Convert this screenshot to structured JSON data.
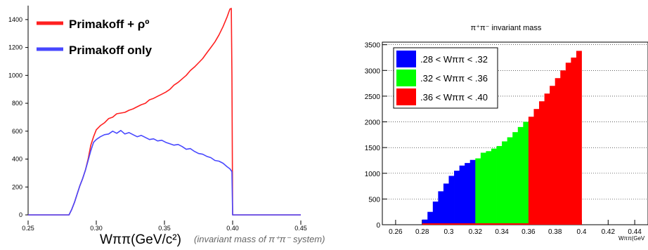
{
  "chart_data": [
    {
      "type": "line",
      "title": "",
      "xlabel": "Wππ(GeV/c²)",
      "xlabel_note": "(invariant mass of π⁺π⁻ system)",
      "ylabel": "",
      "xlim": [
        0.25,
        0.45
      ],
      "ylim": [
        0,
        1500
      ],
      "x_ticks": [
        "0.25",
        "0.30",
        "0.35",
        "0.40",
        "0.45"
      ],
      "y_ticks": [
        "0",
        "200",
        "400",
        "600",
        "800",
        "1000",
        "1200",
        "1400"
      ],
      "legend_position": "top-left",
      "series": [
        {
          "name": "Primakoff + ρº",
          "color": "#ff2020",
          "x": [
            0.25,
            0.28,
            0.282,
            0.284,
            0.286,
            0.288,
            0.29,
            0.292,
            0.294,
            0.296,
            0.298,
            0.3,
            0.303,
            0.306,
            0.309,
            0.312,
            0.315,
            0.318,
            0.321,
            0.324,
            0.327,
            0.33,
            0.333,
            0.336,
            0.339,
            0.342,
            0.345,
            0.348,
            0.351,
            0.354,
            0.357,
            0.36,
            0.363,
            0.366,
            0.369,
            0.372,
            0.375,
            0.378,
            0.381,
            0.384,
            0.387,
            0.39,
            0.393,
            0.396,
            0.398,
            0.399,
            0.3995,
            0.4,
            0.45
          ],
          "values": [
            0,
            0,
            40,
            90,
            150,
            210,
            260,
            320,
            400,
            500,
            560,
            610,
            640,
            660,
            690,
            700,
            725,
            730,
            735,
            750,
            760,
            775,
            790,
            800,
            825,
            835,
            850,
            865,
            880,
            900,
            930,
            950,
            975,
            1000,
            1035,
            1060,
            1090,
            1120,
            1160,
            1200,
            1240,
            1290,
            1350,
            1420,
            1475,
            1480,
            1000,
            0,
            0
          ]
        },
        {
          "name": "Primakoff only",
          "color": "#4848ff",
          "x": [
            0.25,
            0.28,
            0.282,
            0.284,
            0.286,
            0.288,
            0.29,
            0.292,
            0.294,
            0.296,
            0.298,
            0.3,
            0.303,
            0.306,
            0.309,
            0.312,
            0.315,
            0.318,
            0.321,
            0.324,
            0.327,
            0.33,
            0.333,
            0.336,
            0.339,
            0.342,
            0.345,
            0.348,
            0.351,
            0.354,
            0.357,
            0.36,
            0.363,
            0.366,
            0.369,
            0.372,
            0.375,
            0.378,
            0.381,
            0.384,
            0.387,
            0.39,
            0.393,
            0.396,
            0.398,
            0.3995,
            0.4,
            0.45
          ],
          "values": [
            0,
            0,
            40,
            90,
            150,
            210,
            260,
            320,
            390,
            460,
            520,
            540,
            560,
            575,
            580,
            600,
            585,
            605,
            580,
            590,
            575,
            560,
            570,
            555,
            540,
            545,
            530,
            535,
            520,
            510,
            500,
            505,
            490,
            470,
            475,
            455,
            440,
            435,
            420,
            410,
            390,
            385,
            370,
            345,
            330,
            310,
            0,
            0
          ]
        }
      ]
    },
    {
      "type": "bar",
      "title": "π⁺π⁻ invariant mass",
      "xlabel": "Wππ(GeV",
      "ylabel": "",
      "xlim": [
        0.25,
        0.45
      ],
      "ylim": [
        0,
        3550
      ],
      "x_ticks": [
        "0.26",
        "0.28",
        "0.3",
        "0.32",
        "0.34",
        "0.36",
        "0.38",
        "0.4",
        "0.42",
        "0.44"
      ],
      "y_ticks": [
        "0",
        "500",
        "1000",
        "1500",
        "2000",
        "2500",
        "3000",
        "3500"
      ],
      "grid": "horizontal dotted",
      "legend_position": "top-left",
      "bin_width": 0.004,
      "series": [
        {
          "name": ".28 < Wππ < .32",
          "color": "#0000ff",
          "x": [
            0.28,
            0.284,
            0.288,
            0.292,
            0.296,
            0.3,
            0.304,
            0.308,
            0.312,
            0.316
          ],
          "values": [
            100,
            250,
            450,
            650,
            800,
            950,
            1050,
            1150,
            1200,
            1260
          ]
        },
        {
          "name": ".32 < Wππ < .36",
          "color": "#00ff00",
          "x": [
            0.32,
            0.324,
            0.328,
            0.332,
            0.336,
            0.34,
            0.344,
            0.348,
            0.352,
            0.356
          ],
          "values": [
            1290,
            1400,
            1430,
            1480,
            1530,
            1620,
            1700,
            1800,
            1900,
            2000
          ]
        },
        {
          "name": ".36 < Wππ < .40",
          "color": "#ff0000",
          "x": [
            0.36,
            0.364,
            0.368,
            0.372,
            0.376,
            0.38,
            0.384,
            0.388,
            0.392,
            0.396
          ],
          "values": [
            2100,
            2250,
            2400,
            2550,
            2700,
            2850,
            3000,
            3150,
            3250,
            3380
          ]
        }
      ]
    }
  ]
}
